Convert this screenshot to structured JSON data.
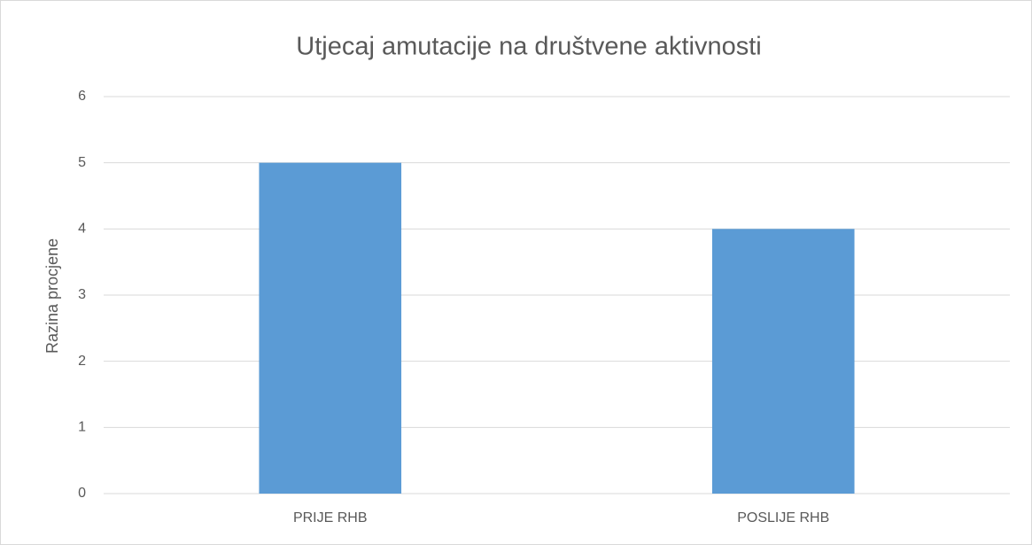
{
  "chart_data": {
    "type": "bar",
    "title": "Utjecaj amutacije na društvene aktivnosti",
    "y_label": "Razina procjene",
    "categories": [
      "PRIJE RHB",
      "POSLIJE RHB"
    ],
    "values": [
      5,
      4
    ],
    "color": "#5b9bd5",
    "ylim": [
      0,
      6
    ],
    "yticks": [
      0,
      1,
      2,
      3,
      4,
      5,
      6
    ],
    "grid": true
  }
}
